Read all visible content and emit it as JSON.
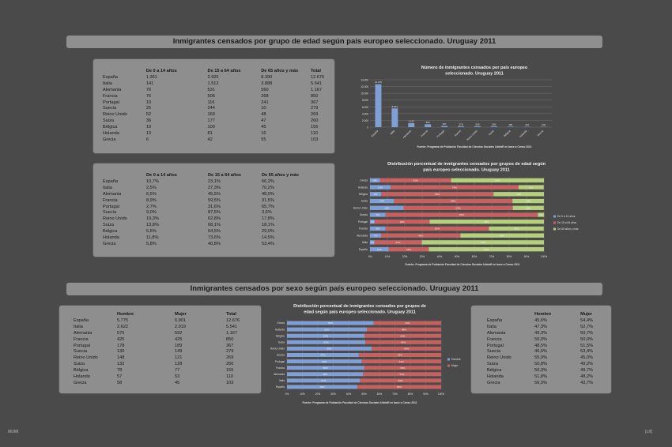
{
  "banners": {
    "age": "Inmigrantes censados por grupo de edad según país europeo seleccionado. Uruguay 2011",
    "sex": "Inmigrantes censados por sexo según país europeo seleccionado. Uruguay 2011"
  },
  "countries": [
    "España",
    "Italia",
    "Alemania",
    "Francia",
    "Portugal",
    "Suecia",
    "Reino Unido",
    "Suiza",
    "Bélgica",
    "Holanda",
    "Grecia"
  ],
  "age_abs_table": {
    "headers": [
      "",
      "De 0 a 14 años",
      "De 15 a 64 años",
      "De 65 años y más",
      "Total"
    ],
    "rows": [
      [
        "España",
        "1.361",
        "2.925",
        "8.390",
        "12.676"
      ],
      [
        "Italia",
        "141",
        "1.512",
        "3.888",
        "5.541"
      ],
      [
        "Alemania",
        "76",
        "531",
        "560",
        "1.167"
      ],
      [
        "Francia",
        "76",
        "506",
        "268",
        "850"
      ],
      [
        "Portugal",
        "10",
        "116",
        "241",
        "367"
      ],
      [
        "Suecia",
        "25",
        "244",
        "10",
        "279"
      ],
      [
        "Reino Unido",
        "52",
        "169",
        "48",
        "269"
      ],
      [
        "Suiza",
        "36",
        "177",
        "47",
        "260"
      ],
      [
        "Bélgica",
        "10",
        "100",
        "45",
        "155"
      ],
      [
        "Holanda",
        "13",
        "81",
        "16",
        "110"
      ],
      [
        "Grecia",
        "6",
        "42",
        "55",
        "103"
      ]
    ]
  },
  "age_pct_table": {
    "headers": [
      "",
      "De 0 a 14 años",
      "De 15 a 64 años",
      "De 65 años y más"
    ],
    "rows": [
      [
        "España",
        "10,7%",
        "23,1%",
        "66,2%"
      ],
      [
        "Italia",
        "2,5%",
        "27,3%",
        "70,2%"
      ],
      [
        "Alemania",
        "6,5%",
        "45,5%",
        "48,0%"
      ],
      [
        "Francia",
        "8,9%",
        "59,5%",
        "31,5%"
      ],
      [
        "Portugal",
        "2,7%",
        "31,6%",
        "65,7%"
      ],
      [
        "Suecia",
        "9,0%",
        "87,5%",
        "3,6%"
      ],
      [
        "Reino Unido",
        "19,3%",
        "62,8%",
        "17,8%"
      ],
      [
        "Suiza",
        "13,8%",
        "68,1%",
        "18,1%"
      ],
      [
        "Bélgica",
        "6,5%",
        "64,5%",
        "29,0%"
      ],
      [
        "Holanda",
        "11,8%",
        "73,6%",
        "14,5%"
      ],
      [
        "Grecia",
        "5,8%",
        "40,8%",
        "53,4%"
      ]
    ]
  },
  "sex_abs_table": {
    "headers": [
      "",
      "Hombre",
      "Mujer",
      "Total"
    ],
    "rows": [
      [
        "España",
        "5.775",
        "6.901",
        "12.676"
      ],
      [
        "Italia",
        "2.622",
        "2.919",
        "5.541"
      ],
      [
        "Alemania",
        "575",
        "592",
        "1.167"
      ],
      [
        "Francia",
        "425",
        "425",
        "850"
      ],
      [
        "Portugal",
        "178",
        "189",
        "367"
      ],
      [
        "Suecia",
        "130",
        "149",
        "279"
      ],
      [
        "Reino Unido",
        "148",
        "121",
        "269"
      ],
      [
        "Suiza",
        "132",
        "128",
        "260"
      ],
      [
        "Bélgica",
        "78",
        "77",
        "155"
      ],
      [
        "Holanda",
        "57",
        "53",
        "110"
      ],
      [
        "Grecia",
        "58",
        "45",
        "103"
      ]
    ]
  },
  "sex_pct_table": {
    "headers": [
      "",
      "Hombre",
      "Mujer"
    ],
    "rows": [
      [
        "España",
        "45,6%",
        "54,4%"
      ],
      [
        "Italia",
        "47,3%",
        "52,7%"
      ],
      [
        "Alemania",
        "49,3%",
        "50,7%"
      ],
      [
        "Francia",
        "50,0%",
        "50,0%"
      ],
      [
        "Portugal",
        "48,5%",
        "51,5%"
      ],
      [
        "Suecia",
        "46,6%",
        "53,4%"
      ],
      [
        "Reino Unido",
        "55,0%",
        "45,0%"
      ],
      [
        "Suiza",
        "50,8%",
        "49,2%"
      ],
      [
        "Bélgica",
        "50,3%",
        "49,7%"
      ],
      [
        "Holanda",
        "51,8%",
        "48,2%"
      ],
      [
        "Grecia",
        "56,3%",
        "43,7%"
      ]
    ]
  },
  "colors": {
    "background": "#4a4a4a",
    "panel": "#8e8e8e",
    "blue": "#7f9fd6",
    "red": "#c86060",
    "green": "#b5cf7a"
  },
  "chart_data": [
    {
      "type": "bar",
      "title": "Número de inmigrantes censados por país europeo seleccionado. Uruguay 2011",
      "categories": [
        "España",
        "Italia",
        "Alemania",
        "Francia",
        "Portugal",
        "Suecia",
        "Reino Unido",
        "Suiza",
        "Bélgica",
        "Holanda",
        "Grecia"
      ],
      "values": [
        12676,
        5541,
        1167,
        850,
        367,
        279,
        269,
        260,
        155,
        110,
        103
      ],
      "data_labels": [
        "12.676",
        "5.541",
        "1.167",
        "850",
        "367",
        "279",
        "269",
        "260",
        "155",
        "110",
        "103"
      ],
      "yticks": [
        "0",
        "2.000",
        "4.000",
        "6.000",
        "8.000",
        "10.000",
        "12.000",
        "14.000"
      ],
      "ylim": [
        0,
        14000
      ],
      "xlabel": "",
      "ylabel": "",
      "grid": true,
      "source": "Fuente: Programa de Población Facultad de Ciencias Sociales UdelaR en base a Censo 2011"
    },
    {
      "type": "bar",
      "orientation": "horizontal-stacked-100",
      "title": "Distribución porcentual de inmigrantes censados por grupos de edad según país europeo seleccionado. Uruguay 2011",
      "categories": [
        "España",
        "Italia",
        "Alemania",
        "Francia",
        "Portugal",
        "Suecia",
        "Reino Unido",
        "Suiza",
        "Bélgica",
        "Holanda",
        "Grecia"
      ],
      "series": [
        {
          "name": "De 0 a 14 años",
          "values": [
            10.7,
            2.5,
            6.5,
            8.9,
            2.7,
            9.0,
            19.3,
            13.8,
            6.5,
            11.8,
            5.8
          ],
          "labels": [
            "11%",
            "3%",
            "7%",
            "9%",
            "3%",
            "9%",
            "19%",
            "14%",
            "6%",
            "12%",
            "6%"
          ]
        },
        {
          "name": "De 15 a 64 años",
          "values": [
            23.1,
            27.3,
            45.5,
            59.5,
            31.6,
            87.5,
            62.8,
            68.1,
            64.5,
            73.6,
            40.8
          ],
          "labels": [
            "23%",
            "27%",
            "46%",
            "60%",
            "32%",
            "87%",
            "63%",
            "68%",
            "65%",
            "74%",
            "41%"
          ]
        },
        {
          "name": "De 65 años y más",
          "values": [
            66.2,
            70.2,
            48.0,
            31.5,
            65.7,
            3.6,
            17.8,
            18.1,
            29.0,
            14.5,
            53.4
          ],
          "labels": [
            "66%",
            "70%",
            "48%",
            "32%",
            "66%",
            "4%",
            "18%",
            "18%",
            "29%",
            "15%",
            "53%"
          ]
        }
      ],
      "xticks": [
        "0%",
        "10%",
        "20%",
        "30%",
        "40%",
        "50%",
        "60%",
        "70%",
        "80%",
        "90%",
        "100%"
      ],
      "xlim": [
        0,
        100
      ],
      "legend": "right",
      "grid": true,
      "source": "Fuente: Programa de Población Facultad de Ciencias Sociales UdelaR en base a Censo 2011"
    },
    {
      "type": "bar",
      "orientation": "horizontal-stacked-100",
      "title": "Distribución porcentual de inmigrantes censados por grupos de edad según país europeo seleccionado. Uruguay 2011",
      "categories": [
        "España",
        "Italia",
        "Alemania",
        "Francia",
        "Portugal",
        "Suecia",
        "Reino Unido",
        "Suiza",
        "Bélgica",
        "Holanda",
        "Grecia"
      ],
      "series": [
        {
          "name": "Hombre",
          "values": [
            45.6,
            47.3,
            49.3,
            50.0,
            48.5,
            46.6,
            55.0,
            50.8,
            50.3,
            51.8,
            56.3
          ],
          "labels": [
            "46%",
            "47%",
            "49%",
            "50%",
            "49%",
            "47%",
            "55%",
            "51%",
            "50%",
            "52%",
            "56%"
          ]
        },
        {
          "name": "Mujer",
          "values": [
            54.4,
            52.7,
            50.7,
            50.0,
            51.5,
            53.4,
            45.0,
            49.2,
            49.7,
            48.2,
            43.7
          ],
          "labels": [
            "54%",
            "53%",
            "51%",
            "50%",
            "51%",
            "53%",
            "45%",
            "49%",
            "50%",
            "48%",
            "44%"
          ]
        }
      ],
      "xticks": [
        "0%",
        "10%",
        "20%",
        "30%",
        "40%",
        "50%",
        "60%",
        "70%",
        "80%",
        "90%",
        "100%"
      ],
      "xlim": [
        0,
        100
      ],
      "legend": "right",
      "grid": true,
      "source": "Fuente: Programa de Población Facultad de Ciencias Sociales UdelaR en base a Censo 2011"
    }
  ],
  "logos": {
    "left": "MUMI",
    "right": "[cif]"
  }
}
